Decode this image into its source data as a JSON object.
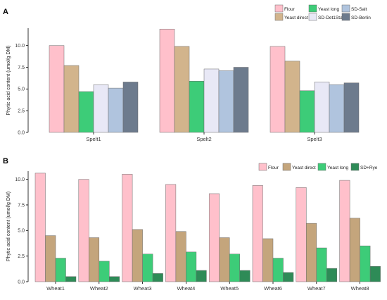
{
  "chart_data": [
    {
      "panel_label": "A",
      "type": "bar",
      "categories": [
        "Spelt1",
        "Spelt2",
        "Spelt3"
      ],
      "ylabel": "Phytic acid content (umol/g DM)",
      "xlabel": "",
      "ylim": [
        0,
        12
      ],
      "yticks": [
        "0.0",
        "2.5",
        "5.0",
        "7.5",
        "10.0"
      ],
      "grid": false,
      "legend_position": "top-right",
      "series": [
        {
          "name": "Flour",
          "color": "#FFC0CB",
          "values": [
            10.0,
            11.9,
            9.9
          ]
        },
        {
          "name": "Yeast direct",
          "color": "#D2B48C",
          "values": [
            7.7,
            9.9,
            8.2
          ]
        },
        {
          "name": "Yeast long",
          "color": "#3DCC78",
          "values": [
            4.7,
            5.9,
            4.8
          ]
        },
        {
          "name": "SD-Det1Stage",
          "color": "#E8E8F6",
          "values": [
            5.5,
            7.3,
            5.8
          ]
        },
        {
          "name": "SD-Salt",
          "color": "#B0C4DE",
          "values": [
            5.1,
            7.1,
            5.5
          ]
        },
        {
          "name": "SD-Berlin",
          "color": "#6D7B8D",
          "values": [
            5.8,
            7.5,
            5.7
          ]
        }
      ]
    },
    {
      "panel_label": "B",
      "type": "bar",
      "categories": [
        "Wheat1",
        "Wheat2",
        "Wheat3",
        "Wheat4",
        "Wheat5",
        "Wheat6",
        "Wheat7",
        "Wheat8"
      ],
      "ylabel": "Phytic acid content (umol/g DM)",
      "xlabel": "",
      "ylim": [
        0,
        10.8
      ],
      "yticks": [
        "0.0",
        "2.5",
        "5.0",
        "7.5",
        "10.0"
      ],
      "grid": false,
      "legend_position": "top-right",
      "series": [
        {
          "name": "Flour",
          "color": "#FFC0CB",
          "values": [
            10.6,
            10.0,
            10.5,
            9.5,
            8.6,
            9.4,
            9.2,
            9.9
          ]
        },
        {
          "name": "Yeast direct",
          "color": "#C4A57C",
          "values": [
            4.5,
            4.3,
            5.1,
            4.9,
            4.3,
            4.2,
            5.7,
            6.2
          ]
        },
        {
          "name": "Yeast long",
          "color": "#3DCC78",
          "values": [
            2.3,
            2.0,
            2.7,
            2.9,
            2.7,
            2.3,
            3.3,
            3.5
          ]
        },
        {
          "name": "SD+Rye",
          "color": "#2E8B57",
          "values": [
            0.5,
            0.5,
            0.8,
            1.1,
            1.1,
            0.9,
            1.3,
            1.5
          ]
        }
      ]
    }
  ]
}
